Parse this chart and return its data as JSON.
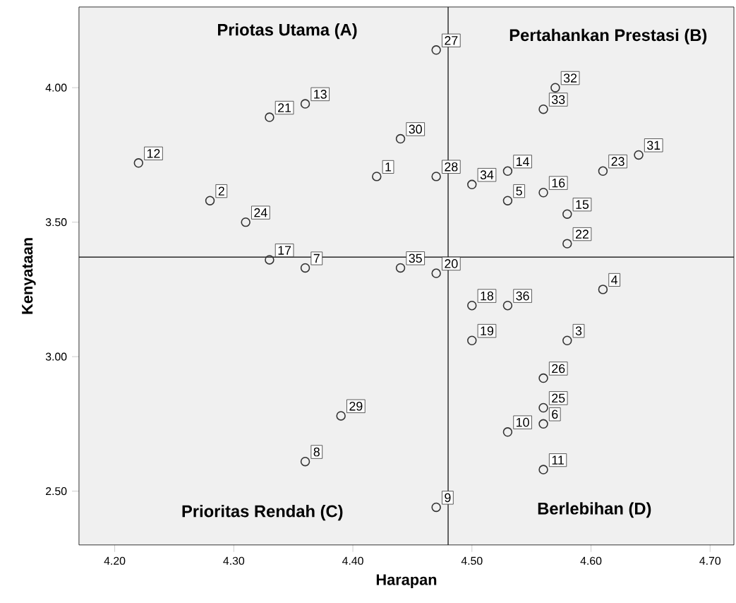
{
  "chart_data": {
    "type": "scatter",
    "xlabel": "Harapan",
    "ylabel": "Kenyataan",
    "xlim": [
      4.17,
      4.72
    ],
    "ylim": [
      2.3,
      4.3
    ],
    "xticks": [
      {
        "value": 4.2,
        "label": "4.20"
      },
      {
        "value": 4.3,
        "label": "4.30"
      },
      {
        "value": 4.4,
        "label": "4.40"
      },
      {
        "value": 4.5,
        "label": "4.50"
      },
      {
        "value": 4.6,
        "label": "4.60"
      },
      {
        "value": 4.7,
        "label": "4.70"
      }
    ],
    "yticks": [
      {
        "value": 2.5,
        "label": "2.50"
      },
      {
        "value": 3.0,
        "label": "3.00"
      },
      {
        "value": 3.5,
        "label": "3.50"
      },
      {
        "value": 4.0,
        "label": "4.00"
      }
    ],
    "marker": "circle",
    "grid": false,
    "x": [
      4.42,
      4.28,
      4.58,
      4.61,
      4.53,
      4.56,
      4.36,
      4.36,
      4.47,
      4.53,
      4.56,
      4.22,
      4.36,
      4.53,
      4.58,
      4.56,
      4.33,
      4.5,
      4.5,
      4.47,
      4.33,
      4.58,
      4.61,
      4.31,
      4.56,
      4.56,
      4.47,
      4.47,
      4.39,
      4.44,
      4.64,
      4.57,
      4.56,
      4.5,
      4.44,
      4.53
    ],
    "values": [
      3.67,
      3.58,
      3.06,
      3.25,
      3.58,
      2.75,
      3.33,
      2.61,
      2.44,
      2.72,
      2.58,
      3.72,
      3.94,
      3.69,
      3.53,
      3.61,
      3.36,
      3.19,
      3.06,
      3.31,
      3.89,
      3.42,
      3.69,
      3.5,
      2.81,
      2.92,
      4.14,
      3.67,
      2.78,
      3.81,
      3.75,
      4.0,
      3.92,
      3.64,
      3.33,
      3.19
    ],
    "color": "#333333",
    "ref_lines": [
      {
        "axis": "x",
        "value": 4.48
      },
      {
        "axis": "y",
        "value": 3.37
      }
    ],
    "annotations": [
      "Priotas Utama (A)",
      "Pertahankan Prestasi (B)",
      "Prioritas Rendah (C)",
      "Berlebihan (D)",
      {
        "text": "1",
        "x": 4.42,
        "y": 3.67
      },
      {
        "text": "2",
        "x": 4.28,
        "y": 3.58
      },
      {
        "text": "3",
        "x": 4.58,
        "y": 3.06
      },
      {
        "text": "4",
        "x": 4.61,
        "y": 3.25
      },
      {
        "text": "5",
        "x": 4.53,
        "y": 3.58
      },
      {
        "text": "6",
        "x": 4.56,
        "y": 2.75
      },
      {
        "text": "7",
        "x": 4.36,
        "y": 3.33
      },
      {
        "text": "8",
        "x": 4.36,
        "y": 2.61
      },
      {
        "text": "9",
        "x": 4.47,
        "y": 2.44
      },
      {
        "text": "10",
        "x": 4.53,
        "y": 2.72
      },
      {
        "text": "11",
        "x": 4.56,
        "y": 2.58
      },
      {
        "text": "12",
        "x": 4.22,
        "y": 3.72
      },
      {
        "text": "13",
        "x": 4.36,
        "y": 3.94
      },
      {
        "text": "14",
        "x": 4.53,
        "y": 3.69
      },
      {
        "text": "15",
        "x": 4.58,
        "y": 3.53
      },
      {
        "text": "16",
        "x": 4.56,
        "y": 3.61
      },
      {
        "text": "17",
        "x": 4.33,
        "y": 3.36
      },
      {
        "text": "18",
        "x": 4.5,
        "y": 3.19
      },
      {
        "text": "19",
        "x": 4.5,
        "y": 3.06
      },
      {
        "text": "20",
        "x": 4.47,
        "y": 3.31
      },
      {
        "text": "21",
        "x": 4.33,
        "y": 3.89
      },
      {
        "text": "22",
        "x": 4.58,
        "y": 3.42
      },
      {
        "text": "23",
        "x": 4.61,
        "y": 3.69
      },
      {
        "text": "24",
        "x": 4.31,
        "y": 3.5
      },
      {
        "text": "25",
        "x": 4.56,
        "y": 2.81
      },
      {
        "text": "26",
        "x": 4.56,
        "y": 2.92
      },
      {
        "text": "27",
        "x": 4.47,
        "y": 4.14
      },
      {
        "text": "28",
        "x": 4.47,
        "y": 3.67
      },
      {
        "text": "29",
        "x": 4.39,
        "y": 2.78
      },
      {
        "text": "30",
        "x": 4.44,
        "y": 3.81
      },
      {
        "text": "31",
        "x": 4.64,
        "y": 3.75
      },
      {
        "text": "32",
        "x": 4.57,
        "y": 4.0
      },
      {
        "text": "33",
        "x": 4.56,
        "y": 3.92
      },
      {
        "text": "34",
        "x": 4.5,
        "y": 3.64
      },
      {
        "text": "35",
        "x": 4.44,
        "y": 3.33
      },
      {
        "text": "36",
        "x": 4.53,
        "y": 3.19
      }
    ]
  }
}
